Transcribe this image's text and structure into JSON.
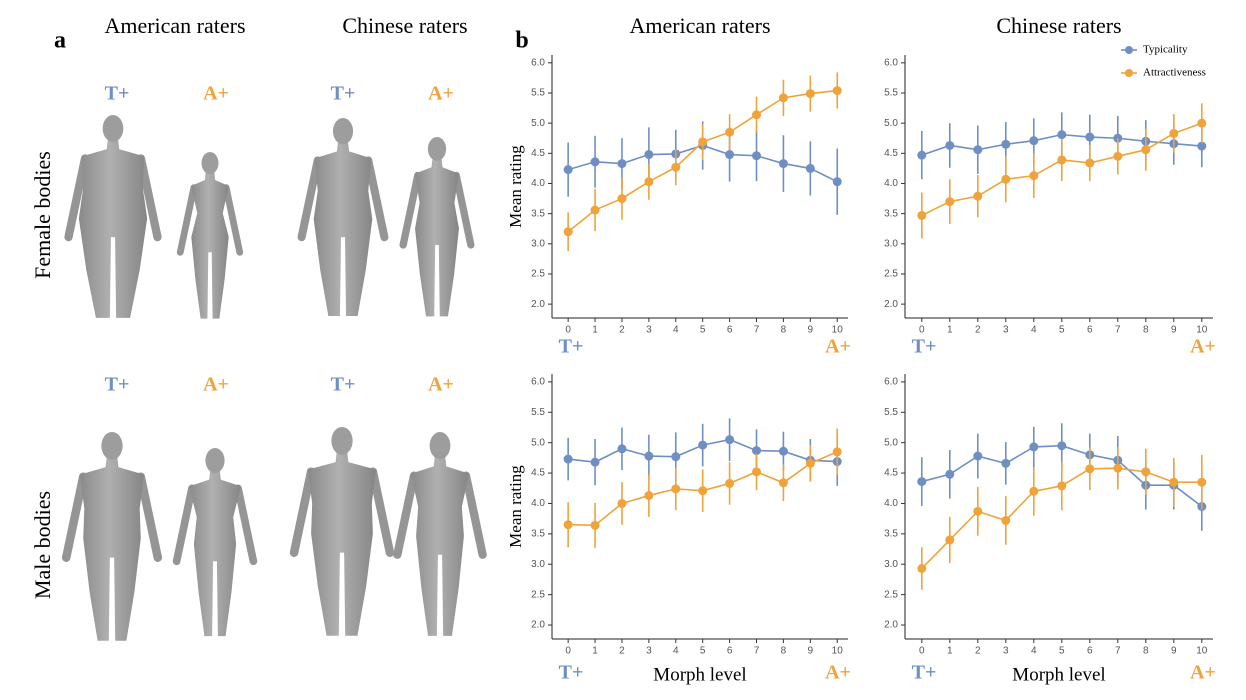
{
  "panel_a": {
    "label": "a",
    "columns": [
      "American raters",
      "Chinese raters"
    ],
    "rows": [
      {
        "label": "Female bodies",
        "tags": [
          "T+",
          "A+",
          "T+",
          "A+"
        ]
      },
      {
        "label": "Male bodies",
        "tags": [
          "T+",
          "A+",
          "T+",
          "A+"
        ]
      }
    ],
    "tag_colors": [
      "#6f8fc4",
      "#f0a33a"
    ]
  },
  "panel_b": {
    "label": "b"
  },
  "chart_data": [
    {
      "type": "line",
      "title": "American raters",
      "ylabel": "Mean rating",
      "end_labels": [
        "T+",
        "A+"
      ],
      "x": [
        0,
        1,
        2,
        3,
        4,
        5,
        6,
        7,
        8,
        9,
        10
      ],
      "xlim": [
        -0.6,
        10.4
      ],
      "xticks": [
        0,
        1,
        2,
        3,
        4,
        5,
        6,
        7,
        8,
        9,
        10
      ],
      "ylim": [
        1.77,
        6.13
      ],
      "yticks": [
        {
          "value": 2,
          "label": "2.0"
        },
        {
          "value": 2.5,
          "label": "2.5"
        },
        {
          "value": 3,
          "label": "3.0"
        },
        {
          "value": 3.5,
          "label": "3.5"
        },
        {
          "value": 4,
          "label": "4.0"
        },
        {
          "value": 4.5,
          "label": "4.5"
        },
        {
          "value": 5,
          "label": "5.0"
        },
        {
          "value": 5.5,
          "label": "5.5"
        },
        {
          "value": 6,
          "label": "6.0"
        }
      ],
      "series": [
        {
          "color": "#6f8fc4",
          "values": [
            4.23,
            4.36,
            4.33,
            4.48,
            4.49,
            4.63,
            4.48,
            4.46,
            4.33,
            4.25,
            4.03
          ],
          "errors": [
            0.45,
            0.43,
            0.42,
            0.45,
            0.4,
            0.4,
            0.45,
            0.42,
            0.47,
            0.45,
            0.55
          ]
        },
        {
          "color": "#f0a33a",
          "values": [
            3.2,
            3.56,
            3.75,
            4.03,
            4.27,
            4.69,
            4.85,
            5.14,
            5.42,
            5.49,
            5.54
          ],
          "errors": [
            0.32,
            0.35,
            0.35,
            0.3,
            0.3,
            0.3,
            0.3,
            0.3,
            0.3,
            0.3,
            0.3
          ]
        }
      ]
    },
    {
      "type": "line",
      "title": "Chinese raters",
      "end_labels": [
        "T+",
        "A+"
      ],
      "legend": "top-right",
      "x": [
        0,
        1,
        2,
        3,
        4,
        5,
        6,
        7,
        8,
        9,
        10
      ],
      "xlim": [
        -0.6,
        10.4
      ],
      "xticks": [
        0,
        1,
        2,
        3,
        4,
        5,
        6,
        7,
        8,
        9,
        10
      ],
      "ylim": [
        1.77,
        6.13
      ],
      "yticks": [
        {
          "value": 2,
          "label": "2.0"
        },
        {
          "value": 2.5,
          "label": "2.5"
        },
        {
          "value": 3,
          "label": "3.0"
        },
        {
          "value": 3.5,
          "label": "3.5"
        },
        {
          "value": 4,
          "label": "4.0"
        },
        {
          "value": 4.5,
          "label": "4.5"
        },
        {
          "value": 5,
          "label": "5.0"
        },
        {
          "value": 5.5,
          "label": "5.5"
        },
        {
          "value": 6,
          "label": "6.0"
        }
      ],
      "series": [
        {
          "name": "Typicality",
          "color": "#6f8fc4",
          "values": [
            4.47,
            4.63,
            4.56,
            4.65,
            4.71,
            4.81,
            4.77,
            4.75,
            4.7,
            4.66,
            4.62
          ],
          "errors": [
            0.4,
            0.37,
            0.4,
            0.37,
            0.37,
            0.37,
            0.37,
            0.37,
            0.35,
            0.35,
            0.35
          ]
        },
        {
          "name": "Attractiveness",
          "color": "#f0a33a",
          "values": [
            3.47,
            3.7,
            3.79,
            4.07,
            4.13,
            4.39,
            4.34,
            4.45,
            4.56,
            4.83,
            5.0
          ],
          "errors": [
            0.38,
            0.37,
            0.35,
            0.38,
            0.37,
            0.35,
            0.3,
            0.3,
            0.35,
            0.32,
            0.33
          ]
        }
      ]
    },
    {
      "type": "line",
      "ylabel": "Mean rating",
      "xlabel": "Morph level",
      "end_labels": [
        "T+",
        "A+"
      ],
      "x": [
        0,
        1,
        2,
        3,
        4,
        5,
        6,
        7,
        8,
        9,
        10
      ],
      "xlim": [
        -0.6,
        10.4
      ],
      "xticks": [
        0,
        1,
        2,
        3,
        4,
        5,
        6,
        7,
        8,
        9,
        10
      ],
      "ylim": [
        1.77,
        6.13
      ],
      "yticks": [
        {
          "value": 2,
          "label": "2.0"
        },
        {
          "value": 2.5,
          "label": "2.5"
        },
        {
          "value": 3,
          "label": "3.0"
        },
        {
          "value": 3.5,
          "label": "3.5"
        },
        {
          "value": 4,
          "label": "4.0"
        },
        {
          "value": 4.5,
          "label": "4.5"
        },
        {
          "value": 5,
          "label": "5.0"
        },
        {
          "value": 5.5,
          "label": "5.5"
        },
        {
          "value": 6,
          "label": "6.0"
        }
      ],
      "series": [
        {
          "color": "#6f8fc4",
          "values": [
            4.73,
            4.68,
            4.9,
            4.78,
            4.77,
            4.96,
            5.05,
            4.87,
            4.86,
            4.71,
            4.69
          ],
          "errors": [
            0.35,
            0.38,
            0.35,
            0.35,
            0.4,
            0.35,
            0.35,
            0.35,
            0.32,
            0.35,
            0.4
          ]
        },
        {
          "color": "#f0a33a",
          "values": [
            3.65,
            3.64,
            4.0,
            4.13,
            4.24,
            4.21,
            4.33,
            4.52,
            4.34,
            4.66,
            4.85
          ],
          "errors": [
            0.37,
            0.37,
            0.35,
            0.35,
            0.35,
            0.35,
            0.35,
            0.3,
            0.3,
            0.3,
            0.38
          ]
        }
      ]
    },
    {
      "type": "line",
      "xlabel": "Morph level",
      "end_labels": [
        "T+",
        "A+"
      ],
      "x": [
        0,
        1,
        2,
        3,
        4,
        5,
        6,
        7,
        8,
        9,
        10
      ],
      "xlim": [
        -0.6,
        10.4
      ],
      "xticks": [
        0,
        1,
        2,
        3,
        4,
        5,
        6,
        7,
        8,
        9,
        10
      ],
      "ylim": [
        1.77,
        6.13
      ],
      "yticks": [
        {
          "value": 2,
          "label": "2.0"
        },
        {
          "value": 2.5,
          "label": "2.5"
        },
        {
          "value": 3,
          "label": "3.0"
        },
        {
          "value": 3.5,
          "label": "3.5"
        },
        {
          "value": 4,
          "label": "4.0"
        },
        {
          "value": 4.5,
          "label": "4.5"
        },
        {
          "value": 5,
          "label": "5.0"
        },
        {
          "value": 5.5,
          "label": "5.5"
        },
        {
          "value": 6,
          "label": "6.0"
        }
      ],
      "series": [
        {
          "color": "#6f8fc4",
          "values": [
            4.36,
            4.48,
            4.78,
            4.66,
            4.93,
            4.95,
            4.8,
            4.71,
            4.3,
            4.3,
            3.95
          ],
          "errors": [
            0.4,
            0.4,
            0.37,
            0.35,
            0.33,
            0.37,
            0.35,
            0.4,
            0.4,
            0.4,
            0.4
          ]
        },
        {
          "color": "#f0a33a",
          "values": [
            2.93,
            3.4,
            3.87,
            3.72,
            4.2,
            4.29,
            4.57,
            4.58,
            4.52,
            4.35,
            4.35
          ],
          "errors": [
            0.35,
            0.38,
            0.4,
            0.4,
            0.4,
            0.4,
            0.35,
            0.35,
            0.38,
            0.4,
            0.45
          ]
        }
      ]
    }
  ]
}
